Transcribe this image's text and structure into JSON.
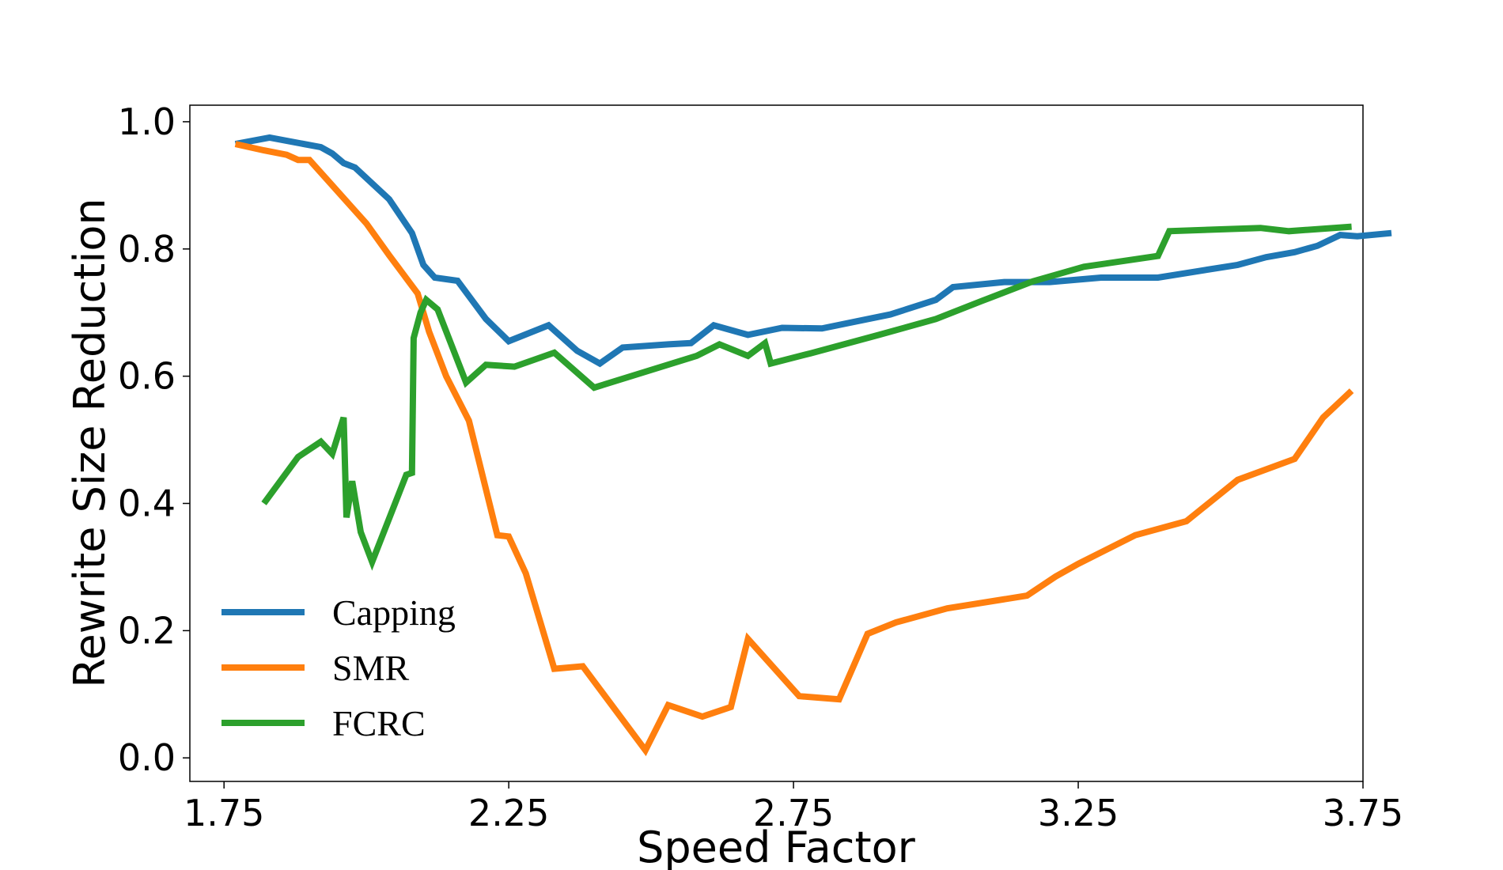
{
  "chart_data": {
    "type": "line",
    "xlabel": "Speed Factor",
    "ylabel": "Rewrite Size Reduction",
    "xlim": [
      1.69,
      3.75
    ],
    "ylim": [
      -0.037,
      1.026
    ],
    "xticks": [
      1.75,
      2.25,
      2.75,
      3.25,
      3.75
    ],
    "xtick_labels": [
      "1.75",
      "2.25",
      "2.75",
      "3.25",
      "3.75"
    ],
    "yticks": [
      0.0,
      0.2,
      0.4,
      0.6,
      0.8,
      1.0
    ],
    "ytick_labels": [
      "0.0",
      "0.2",
      "0.4",
      "0.6",
      "0.8",
      "1.0"
    ],
    "grid": false,
    "legend_position": "lower-left",
    "series": [
      {
        "name": "Capping",
        "color": "#1f77b4",
        "points": [
          [
            1.77,
            0.965
          ],
          [
            1.83,
            0.975
          ],
          [
            1.92,
            0.96
          ],
          [
            1.94,
            0.95
          ],
          [
            1.96,
            0.935
          ],
          [
            1.98,
            0.928
          ],
          [
            2.04,
            0.878
          ],
          [
            2.08,
            0.825
          ],
          [
            2.1,
            0.775
          ],
          [
            2.12,
            0.755
          ],
          [
            2.16,
            0.75
          ],
          [
            2.21,
            0.69
          ],
          [
            2.25,
            0.655
          ],
          [
            2.32,
            0.68
          ],
          [
            2.37,
            0.64
          ],
          [
            2.41,
            0.62
          ],
          [
            2.45,
            0.645
          ],
          [
            2.53,
            0.65
          ],
          [
            2.57,
            0.652
          ],
          [
            2.61,
            0.68
          ],
          [
            2.67,
            0.665
          ],
          [
            2.73,
            0.676
          ],
          [
            2.8,
            0.675
          ],
          [
            2.87,
            0.688
          ],
          [
            2.92,
            0.697
          ],
          [
            3.0,
            0.72
          ],
          [
            3.03,
            0.74
          ],
          [
            3.12,
            0.748
          ],
          [
            3.2,
            0.748
          ],
          [
            3.29,
            0.755
          ],
          [
            3.39,
            0.755
          ],
          [
            3.46,
            0.765
          ],
          [
            3.53,
            0.775
          ],
          [
            3.58,
            0.787
          ],
          [
            3.63,
            0.795
          ],
          [
            3.67,
            0.805
          ],
          [
            3.71,
            0.822
          ],
          [
            3.74,
            0.82
          ],
          [
            3.8,
            0.825
          ]
        ]
      },
      {
        "name": "SMR",
        "color": "#ff7f0e",
        "points": [
          [
            1.77,
            0.965
          ],
          [
            1.82,
            0.955
          ],
          [
            1.86,
            0.948
          ],
          [
            1.88,
            0.94
          ],
          [
            1.9,
            0.94
          ],
          [
            1.93,
            0.91
          ],
          [
            1.97,
            0.87
          ],
          [
            2.0,
            0.84
          ],
          [
            2.04,
            0.79
          ],
          [
            2.09,
            0.73
          ],
          [
            2.11,
            0.67
          ],
          [
            2.14,
            0.6
          ],
          [
            2.18,
            0.53
          ],
          [
            2.23,
            0.35
          ],
          [
            2.25,
            0.348
          ],
          [
            2.28,
            0.29
          ],
          [
            2.33,
            0.14
          ],
          [
            2.38,
            0.144
          ],
          [
            2.49,
            0.012
          ],
          [
            2.53,
            0.083
          ],
          [
            2.59,
            0.065
          ],
          [
            2.64,
            0.08
          ],
          [
            2.67,
            0.187
          ],
          [
            2.76,
            0.097
          ],
          [
            2.83,
            0.092
          ],
          [
            2.88,
            0.195
          ],
          [
            2.93,
            0.213
          ],
          [
            3.02,
            0.235
          ],
          [
            3.16,
            0.255
          ],
          [
            3.21,
            0.285
          ],
          [
            3.25,
            0.305
          ],
          [
            3.35,
            0.35
          ],
          [
            3.44,
            0.372
          ],
          [
            3.53,
            0.437
          ],
          [
            3.63,
            0.47
          ],
          [
            3.68,
            0.535
          ],
          [
            3.73,
            0.577
          ]
        ]
      },
      {
        "name": "FCRC",
        "color": "#2ca02c",
        "points": [
          [
            1.82,
            0.4
          ],
          [
            1.88,
            0.473
          ],
          [
            1.92,
            0.497
          ],
          [
            1.94,
            0.478
          ],
          [
            1.96,
            0.535
          ],
          [
            1.965,
            0.378
          ],
          [
            1.975,
            0.435
          ],
          [
            1.99,
            0.355
          ],
          [
            2.01,
            0.308
          ],
          [
            2.07,
            0.445
          ],
          [
            2.08,
            0.448
          ],
          [
            2.083,
            0.66
          ],
          [
            2.095,
            0.7
          ],
          [
            2.105,
            0.72
          ],
          [
            2.125,
            0.705
          ],
          [
            2.175,
            0.59
          ],
          [
            2.21,
            0.618
          ],
          [
            2.26,
            0.615
          ],
          [
            2.33,
            0.637
          ],
          [
            2.4,
            0.582
          ],
          [
            2.58,
            0.632
          ],
          [
            2.62,
            0.65
          ],
          [
            2.67,
            0.632
          ],
          [
            2.7,
            0.652
          ],
          [
            2.71,
            0.62
          ],
          [
            2.78,
            0.636
          ],
          [
            2.9,
            0.665
          ],
          [
            3.0,
            0.69
          ],
          [
            3.08,
            0.718
          ],
          [
            3.17,
            0.749
          ],
          [
            3.26,
            0.772
          ],
          [
            3.39,
            0.789
          ],
          [
            3.41,
            0.828
          ],
          [
            3.57,
            0.833
          ],
          [
            3.62,
            0.828
          ],
          [
            3.73,
            0.835
          ]
        ]
      }
    ]
  }
}
